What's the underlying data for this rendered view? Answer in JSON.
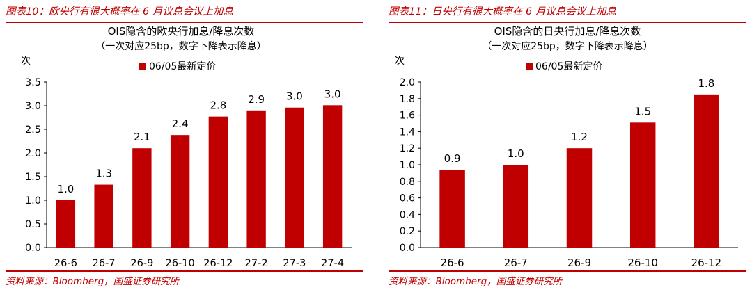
{
  "figures": [
    {
      "caption": "图表10：欧央行有很大概率在 6 月议息会议上加息",
      "source": "资料来源：Bloomberg，国盛证券研究所",
      "chart_data": {
        "type": "bar",
        "title": "OIS隐含的欧央行加息/降息次数",
        "subtitle": "（一次对应25bp，数字下降表示降息）",
        "ylabel": "次",
        "xlabel": "",
        "legend": "top-center",
        "grid": false,
        "color": "#c00000",
        "categories": [
          "26-6",
          "26-7",
          "26-9",
          "26-10",
          "26-12",
          "27-2",
          "27-3",
          "27-4"
        ],
        "series": [
          {
            "name": "06/05最新定价",
            "values": [
              1.0,
              1.33,
              2.1,
              2.38,
              2.77,
              2.9,
              2.96,
              3.01
            ]
          }
        ],
        "data_labels": [
          "1.0",
          "1.3",
          "2.1",
          "2.4",
          "2.8",
          "2.9",
          "3.0",
          "3.0"
        ],
        "ylim": [
          0,
          3.5
        ],
        "yticks": [
          "0.0",
          "0.5",
          "1.0",
          "1.5",
          "2.0",
          "2.5",
          "3.0",
          "3.5"
        ]
      }
    },
    {
      "caption": "图表11：日央行有很大概率在 6 月议息会议上加息",
      "source": "资料来源：Bloomberg，国盛证券研究所",
      "chart_data": {
        "type": "bar",
        "title": "OIS隐含的日央行加息/降息次数",
        "subtitle": "（一次对应25bp，数字下降表示降息）",
        "ylabel": "次",
        "xlabel": "",
        "legend": "top-center",
        "grid": false,
        "color": "#c00000",
        "categories": [
          "26-6",
          "26-7",
          "26-9",
          "26-10",
          "26-12"
        ],
        "series": [
          {
            "name": "06/05最新定价",
            "values": [
              0.94,
              1.0,
              1.2,
              1.51,
              1.85
            ]
          }
        ],
        "data_labels": [
          "0.9",
          "1.0",
          "1.2",
          "1.5",
          "1.8"
        ],
        "ylim": [
          0,
          2.0
        ],
        "yticks": [
          "0.0",
          "0.2",
          "0.4",
          "0.6",
          "0.8",
          "1.0",
          "1.2",
          "1.4",
          "1.6",
          "1.8",
          "2.0"
        ]
      }
    }
  ]
}
